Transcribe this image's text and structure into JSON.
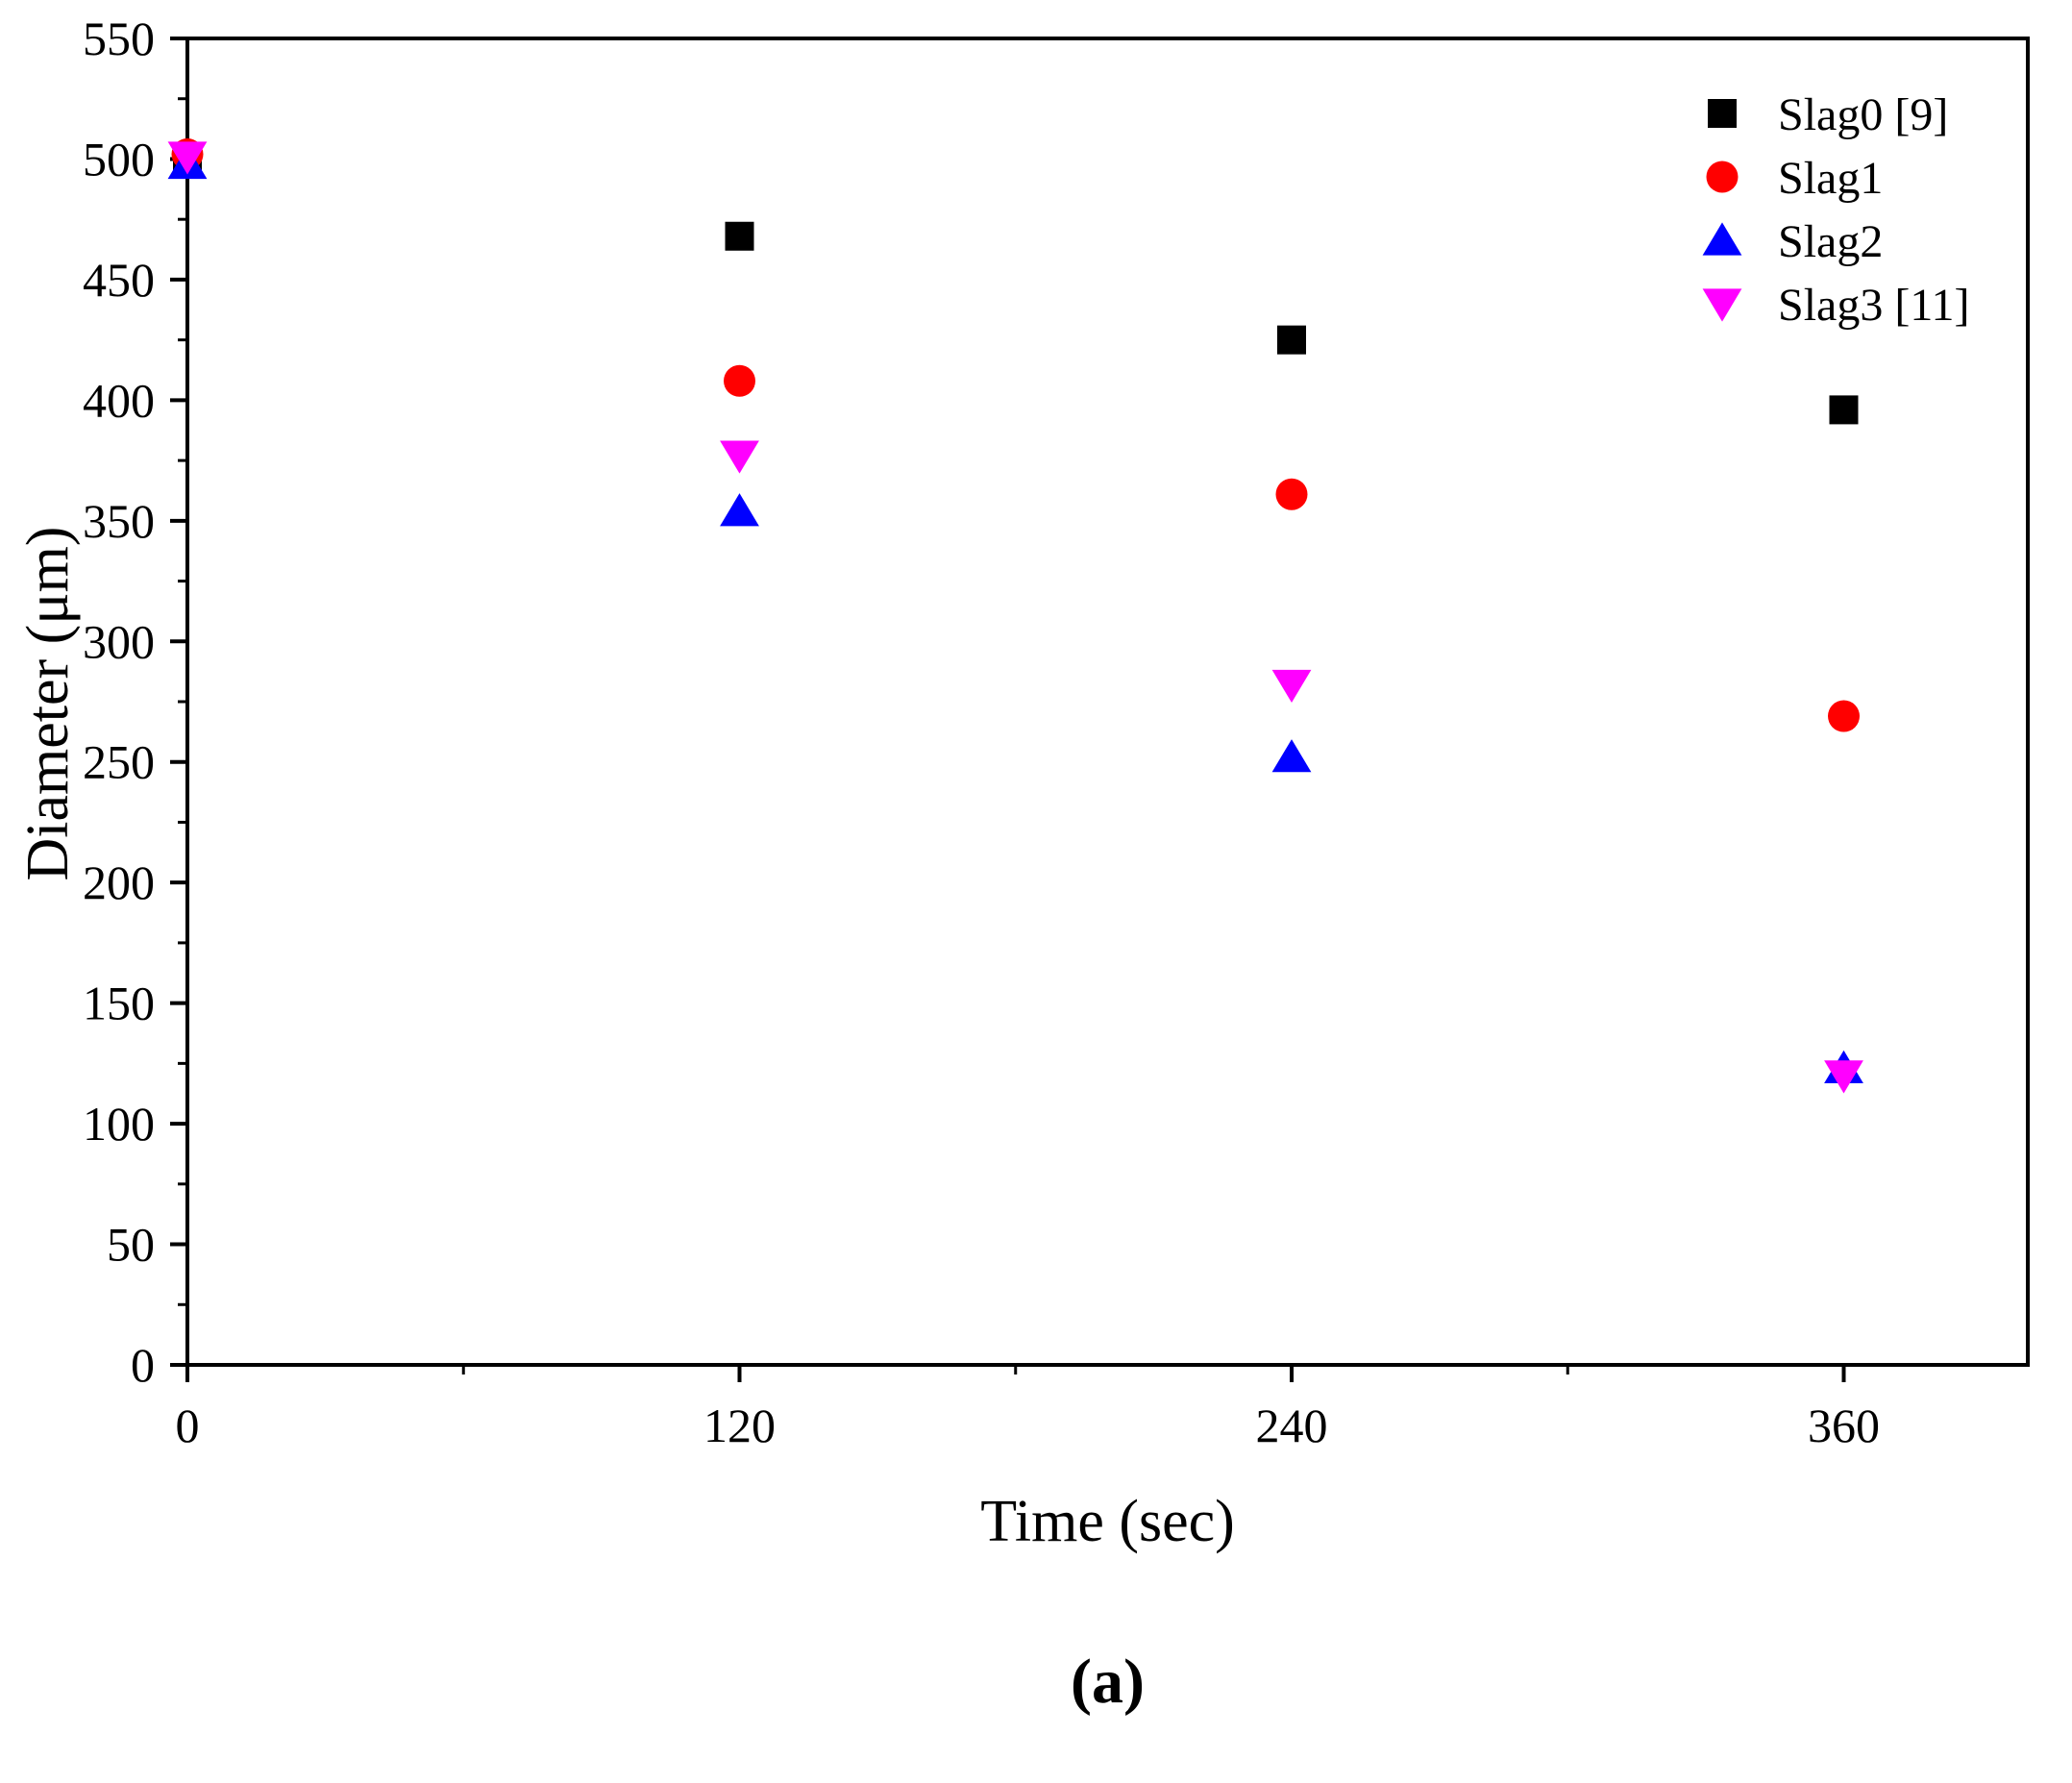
{
  "caption": "(a)",
  "chart_data": {
    "type": "scatter",
    "title": "",
    "xlabel": "Time (sec)",
    "ylabel": "Diameter (μm)",
    "xlim": [
      0,
      400
    ],
    "ylim": [
      0,
      550
    ],
    "x_ticks": [
      0,
      120,
      240,
      360
    ],
    "x_minor_ticks": [
      60,
      180,
      300
    ],
    "y_ticks": [
      0,
      50,
      100,
      150,
      200,
      250,
      300,
      350,
      400,
      450,
      500,
      550
    ],
    "y_minor_ticks": [
      25,
      75,
      125,
      175,
      225,
      275,
      325,
      375,
      425,
      475,
      525
    ],
    "grid": false,
    "legend_position": "top-right",
    "series": [
      {
        "name": "Slag0 [9]",
        "marker": "square",
        "color": "#000000",
        "x": [
          0,
          120,
          240,
          360
        ],
        "y": [
          500,
          468,
          425,
          396
        ]
      },
      {
        "name": "Slag1",
        "marker": "circle",
        "color": "#ff0000",
        "x": [
          0,
          120,
          240,
          360
        ],
        "y": [
          502,
          408,
          361,
          269
        ]
      },
      {
        "name": "Slag2",
        "marker": "triangle-up",
        "color": "#0000ff",
        "x": [
          0,
          120,
          240,
          360
        ],
        "y": [
          498,
          354,
          252,
          123
        ]
      },
      {
        "name": "Slag3 [11]",
        "marker": "triangle-down",
        "color": "#ff00ff",
        "x": [
          0,
          120,
          240,
          360
        ],
        "y": [
          501,
          377,
          282,
          120
        ]
      }
    ]
  }
}
